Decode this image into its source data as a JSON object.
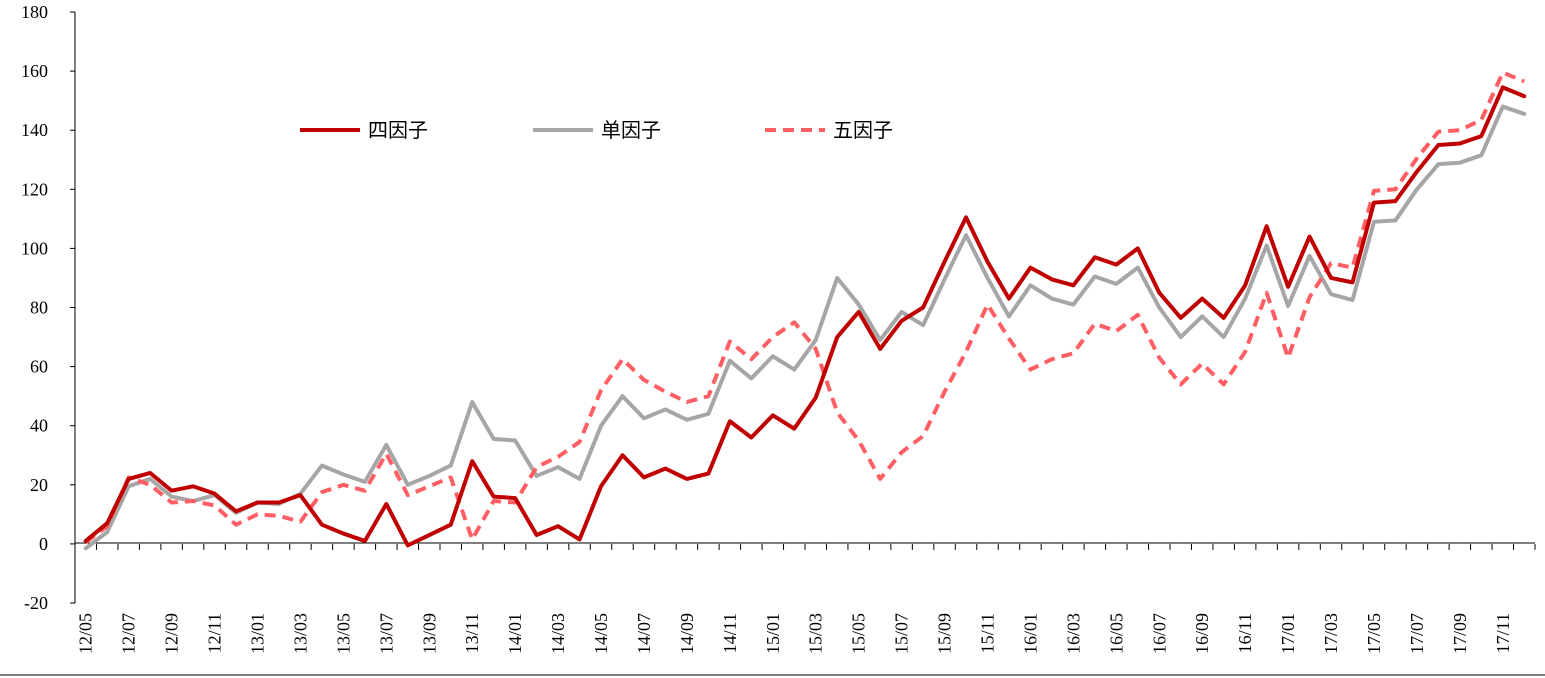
{
  "chart_data": {
    "type": "line",
    "title": "",
    "xlabel": "",
    "ylabel": "",
    "ylim": [
      -20,
      180
    ],
    "yticks": [
      -20,
      0,
      20,
      40,
      60,
      80,
      100,
      120,
      140,
      160,
      180
    ],
    "grid": false,
    "legend_position": "top-left",
    "x": [
      "12/05",
      "12/06",
      "12/07",
      "12/08",
      "12/09",
      "12/10",
      "12/11",
      "12/12",
      "13/01",
      "13/02",
      "13/03",
      "13/04",
      "13/05",
      "13/06",
      "13/07",
      "13/08",
      "13/09",
      "13/10",
      "13/11",
      "13/12",
      "14/01",
      "14/02",
      "14/03",
      "14/04",
      "14/05",
      "14/06",
      "14/07",
      "14/08",
      "14/09",
      "14/10",
      "14/11",
      "14/12",
      "15/01",
      "15/02",
      "15/03",
      "15/04",
      "15/05",
      "15/06",
      "15/07",
      "15/08",
      "15/09",
      "15/10",
      "15/11",
      "15/12",
      "16/01",
      "16/02",
      "16/03",
      "16/04",
      "16/05",
      "16/06",
      "16/07",
      "16/08",
      "16/09",
      "16/10",
      "16/11",
      "16/12",
      "17/01",
      "17/02",
      "17/03",
      "17/04",
      "17/05",
      "17/06",
      "17/07",
      "17/08",
      "17/09",
      "17/10",
      "17/11",
      "17/12"
    ],
    "xtick_labels": [
      "12/05",
      "12/07",
      "12/09",
      "12/11",
      "13/01",
      "13/03",
      "13/05",
      "13/07",
      "13/09",
      "13/11",
      "14/01",
      "14/03",
      "14/05",
      "14/07",
      "14/09",
      "14/11",
      "15/01",
      "15/03",
      "15/05",
      "15/07",
      "15/09",
      "15/11",
      "16/01",
      "16/03",
      "16/05",
      "16/07",
      "16/09",
      "16/11",
      "17/01",
      "17/03",
      "17/05",
      "17/07",
      "17/09",
      "17/11"
    ],
    "series": [
      {
        "name": "四因子",
        "color": "#c00000",
        "style": "solid",
        "values": [
          1,
          7,
          22,
          24,
          18,
          19.5,
          17,
          11,
          14,
          14,
          16.5,
          6.5,
          3.5,
          1,
          13.5,
          -0.5,
          3,
          6.5,
          28,
          16,
          15.5,
          3,
          6,
          1.5,
          19.5,
          30,
          22.5,
          25.5,
          22,
          23.8,
          41.5,
          36,
          43.5,
          39,
          49.5,
          70,
          78.5,
          66,
          75.5,
          80,
          95.5,
          110.5,
          95.5,
          83,
          93.5,
          89.5,
          87.5,
          97,
          94.5,
          100,
          85,
          76.5,
          83,
          76.5,
          87.5,
          107.5,
          87,
          104,
          90,
          88.5,
          115.5,
          116,
          126,
          135,
          135.5,
          138,
          154.5,
          151.5
        ]
      },
      {
        "name": "单因子",
        "color": "#a6a6a6",
        "style": "solid",
        "values": [
          -1.5,
          4,
          19.5,
          22,
          16,
          14.5,
          16.5,
          10.5,
          14,
          13.5,
          17,
          26.5,
          23.5,
          21,
          33.5,
          20,
          23,
          26.5,
          48,
          35.5,
          35,
          23,
          26,
          22,
          40,
          50,
          42.5,
          45.5,
          42,
          44,
          62,
          56,
          63.5,
          59,
          69,
          90,
          81,
          69,
          78.5,
          74,
          89.5,
          104.5,
          90,
          77,
          87.5,
          83,
          81,
          90.5,
          88,
          93.5,
          80,
          70,
          77,
          70,
          83,
          101,
          80.5,
          97.5,
          84.5,
          82.5,
          109,
          109.5,
          120,
          128.5,
          129,
          131.5,
          148,
          145.5
        ]
      },
      {
        "name": "五因子",
        "color": "#ff5f64",
        "style": "dashed",
        "values": [
          0.5,
          6,
          22.5,
          20,
          14,
          14.5,
          13,
          6.5,
          10,
          9.5,
          7.5,
          17.5,
          20,
          18,
          30.5,
          16.5,
          19.5,
          22.5,
          1.5,
          14.5,
          14,
          26,
          29.5,
          34.5,
          52,
          62.5,
          55.5,
          51.5,
          48,
          50,
          68.5,
          62.5,
          70,
          75,
          66,
          44.5,
          35,
          22,
          31,
          36.5,
          51.5,
          65,
          81,
          69.5,
          59,
          62.5,
          64.5,
          74.5,
          72,
          77.5,
          63,
          54,
          61,
          54,
          65,
          85,
          63,
          83.5,
          95,
          93.5,
          119.5,
          120,
          130.5,
          139.5,
          140,
          143.5,
          159.5,
          156.5
        ]
      }
    ]
  }
}
